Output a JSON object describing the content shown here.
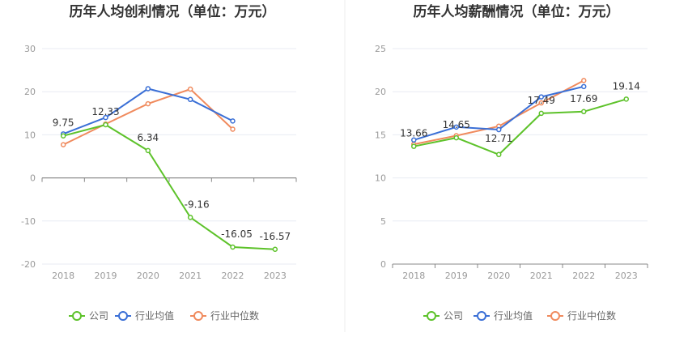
{
  "chart_data": [
    {
      "type": "line",
      "title": "历年人均创利情况（单位：万元）",
      "categories": [
        "2018",
        "2019",
        "2020",
        "2021",
        "2022",
        "2023"
      ],
      "ylim": [
        -20,
        30
      ],
      "yticks": [
        -20,
        -10,
        0,
        10,
        20,
        30
      ],
      "ytick_labels": [
        "-20",
        "-10",
        "0",
        "10",
        "20",
        "30"
      ],
      "grid": true,
      "legend_position": "bottom",
      "series": [
        {
          "name": "公司",
          "color": "#5dc22a",
          "values": [
            9.75,
            12.33,
            6.34,
            -9.16,
            -16.05,
            -16.57
          ],
          "labels": [
            "9.75",
            "12.33",
            "6.34",
            "-9.16",
            "-16.05",
            "-16.57"
          ]
        },
        {
          "name": "行业均值",
          "color": "#3a6fd6",
          "values": [
            10.2,
            14.0,
            20.7,
            18.2,
            13.2,
            null
          ]
        },
        {
          "name": "行业中位数",
          "color": "#f08a5d",
          "values": [
            7.7,
            12.5,
            17.2,
            20.6,
            11.3,
            null
          ]
        }
      ]
    },
    {
      "type": "line",
      "title": "历年人均薪酬情况（单位：万元）",
      "categories": [
        "2018",
        "2019",
        "2020",
        "2021",
        "2022",
        "2023"
      ],
      "ylim": [
        0,
        25
      ],
      "yticks": [
        0,
        5,
        10,
        15,
        20,
        25
      ],
      "ytick_labels": [
        "0",
        "5",
        "10",
        "15",
        "20",
        "25"
      ],
      "grid": true,
      "legend_position": "bottom",
      "series": [
        {
          "name": "公司",
          "color": "#5dc22a",
          "values": [
            13.66,
            14.65,
            12.71,
            17.49,
            17.69,
            19.14
          ],
          "labels": [
            "13.66",
            "14.65",
            "12.71",
            "17.49",
            "17.69",
            "19.14"
          ]
        },
        {
          "name": "行业均值",
          "color": "#3a6fd6",
          "values": [
            14.4,
            15.9,
            15.6,
            19.4,
            20.6,
            null
          ]
        },
        {
          "name": "行业中位数",
          "color": "#f08a5d",
          "values": [
            13.9,
            14.9,
            16.0,
            18.7,
            21.3,
            null
          ]
        }
      ]
    }
  ]
}
